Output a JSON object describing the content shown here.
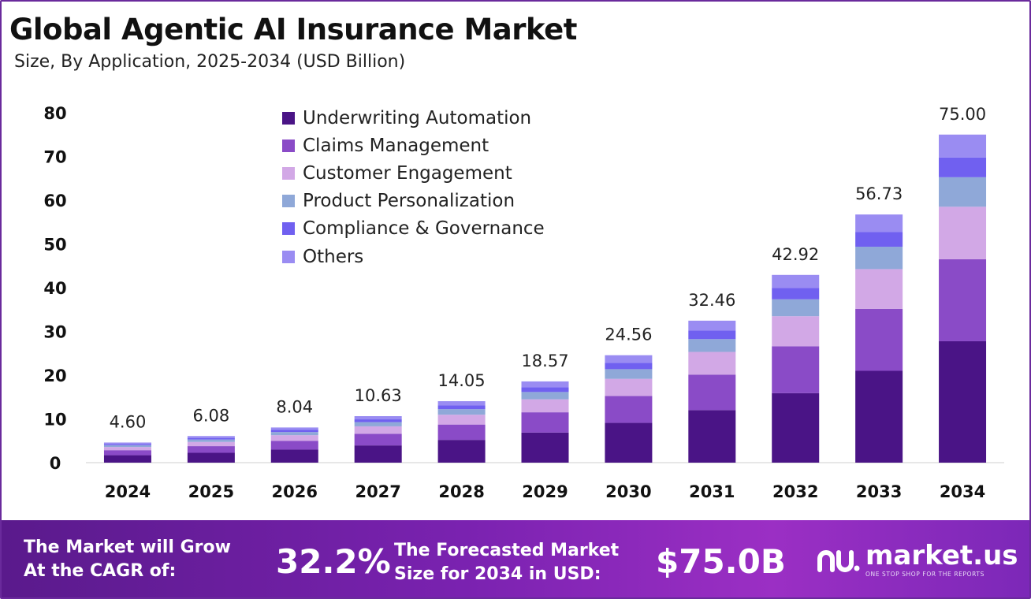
{
  "header": {
    "title": "Global Agentic AI Insurance Market",
    "subtitle": "Size, By Application, 2025-2034 (USD Billion)"
  },
  "chart_data": {
    "type": "bar",
    "stacked": true,
    "title": "Global Agentic AI Insurance Market",
    "subtitle": "Size, By Application, 2025-2034 (USD Billion)",
    "xlabel": "",
    "ylabel": "",
    "ylim": [
      0,
      80
    ],
    "yticks": [
      0,
      10,
      20,
      30,
      40,
      50,
      60,
      70,
      80
    ],
    "grid": false,
    "legend_position": "top-center",
    "categories": [
      "2024",
      "2025",
      "2026",
      "2027",
      "2028",
      "2029",
      "2030",
      "2031",
      "2032",
      "2033",
      "2034"
    ],
    "totals": [
      4.6,
      6.08,
      8.04,
      10.63,
      14.05,
      18.57,
      24.56,
      32.46,
      42.92,
      56.73,
      75.0
    ],
    "total_labels": [
      "4.60",
      "6.08",
      "8.04",
      "10.63",
      "14.05",
      "18.57",
      "24.56",
      "32.46",
      "42.92",
      "56.73",
      "75.00"
    ],
    "series": [
      {
        "name": "Underwriting Automation",
        "color": "#4a1486",
        "values": [
          1.7,
          2.25,
          2.98,
          3.94,
          5.2,
          6.87,
          9.09,
          12.01,
          15.88,
          20.99,
          27.75
        ]
      },
      {
        "name": "Claims Management",
        "color": "#8a4bc7",
        "values": [
          1.15,
          1.52,
          2.01,
          2.66,
          3.51,
          4.64,
          6.14,
          8.12,
          10.73,
          14.18,
          18.75
        ]
      },
      {
        "name": "Customer Engagement",
        "color": "#d2a8e6",
        "values": [
          0.73,
          0.97,
          1.29,
          1.7,
          2.25,
          2.97,
          3.93,
          5.19,
          6.87,
          9.08,
          12.0
        ]
      },
      {
        "name": "Product Personalization",
        "color": "#8fa8d8",
        "values": [
          0.41,
          0.55,
          0.72,
          0.96,
          1.26,
          1.67,
          2.21,
          2.92,
          3.86,
          5.11,
          6.75
        ]
      },
      {
        "name": "Compliance & Governance",
        "color": "#7060f0",
        "values": [
          0.28,
          0.36,
          0.48,
          0.64,
          0.84,
          1.11,
          1.47,
          1.95,
          2.58,
          3.4,
          4.5
        ]
      },
      {
        "name": "Others",
        "color": "#9a8cf2",
        "values": [
          0.33,
          0.43,
          0.56,
          0.73,
          0.99,
          1.31,
          1.72,
          2.27,
          3.0,
          3.97,
          5.25
        ]
      }
    ]
  },
  "footer": {
    "cagr_label": [
      "The Market will Grow",
      "At the CAGR of:"
    ],
    "cagr_value": "32.2%",
    "forecast_label": [
      "The Forecasted Market",
      "Size for 2034 in USD:"
    ],
    "forecast_value": "$75.0B",
    "brand": "market.us",
    "tagline": "ONE STOP SHOP FOR THE REPORTS"
  }
}
